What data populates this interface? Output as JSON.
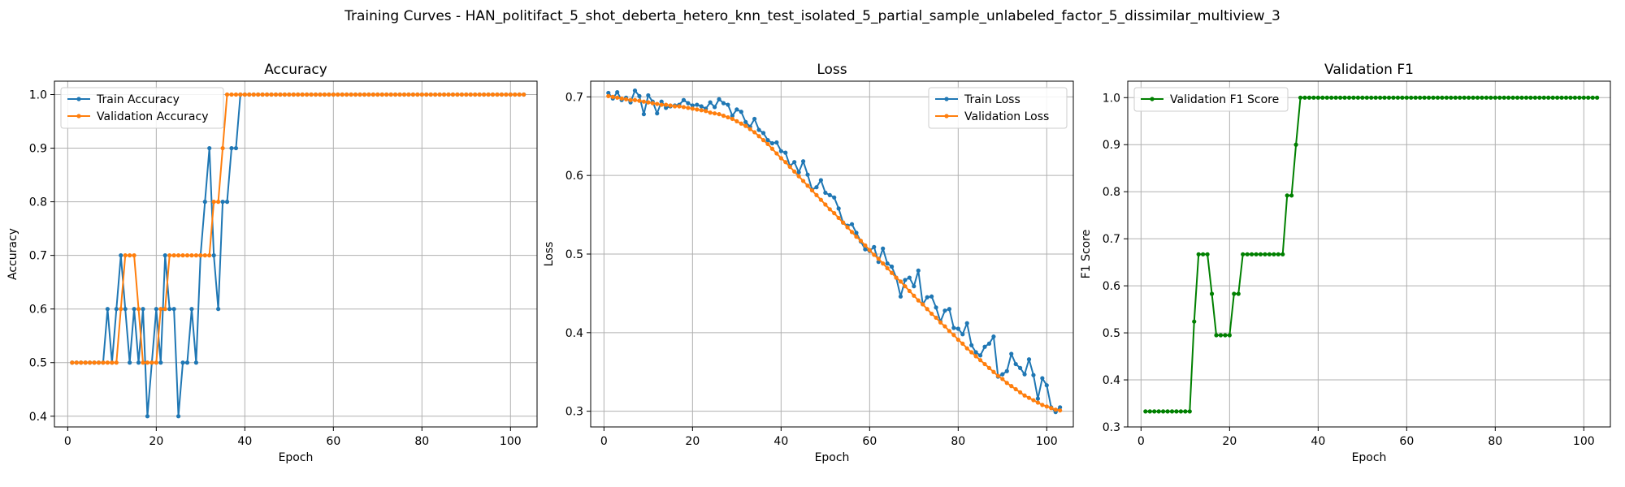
{
  "figure": {
    "title": "Training Curves - HAN_politifact_5_shot_deberta_hetero_knn_test_isolated_5_partial_sample_unlabeled_factor_5_dissimilar_multiview_3"
  },
  "colors": {
    "blue": "#1f77b4",
    "orange": "#ff7f0e",
    "green": "#008000",
    "grid": "#b0b0b0"
  },
  "chart_data": [
    {
      "type": "line",
      "title": "Accuracy",
      "xlabel": "Epoch",
      "ylabel": "Accuracy",
      "xlim": [
        -3,
        106
      ],
      "ylim": [
        0.38,
        1.025
      ],
      "xticks": [
        0,
        20,
        40,
        60,
        80,
        100
      ],
      "yticks": [
        0.4,
        0.5,
        0.6,
        0.7,
        0.8,
        0.9,
        1.0
      ],
      "grid": true,
      "legend": "top-left",
      "series": [
        {
          "name": "Train Accuracy",
          "color": "#1f77b4",
          "x_start": 1,
          "values": [
            0.5,
            0.5,
            0.5,
            0.5,
            0.5,
            0.5,
            0.5,
            0.5,
            0.6,
            0.5,
            0.6,
            0.7,
            0.6,
            0.5,
            0.6,
            0.5,
            0.6,
            0.4,
            0.5,
            0.6,
            0.5,
            0.7,
            0.6,
            0.6,
            0.4,
            0.5,
            0.5,
            0.6,
            0.5,
            0.7,
            0.8,
            0.9,
            0.7,
            0.6,
            0.8,
            0.8,
            0.9,
            0.9,
            1.0,
            1.0,
            1.0,
            1.0,
            1.0,
            1.0,
            1.0,
            1.0,
            1.0,
            1.0,
            1.0,
            1.0,
            1.0,
            1.0,
            1.0,
            1.0,
            1.0,
            1.0,
            1.0,
            1.0,
            1.0,
            1.0,
            1.0,
            1.0,
            1.0,
            1.0,
            1.0,
            1.0,
            1.0,
            1.0,
            1.0,
            1.0,
            1.0,
            1.0,
            1.0,
            1.0,
            1.0,
            1.0,
            1.0,
            1.0,
            1.0,
            1.0,
            1.0,
            1.0,
            1.0,
            1.0,
            1.0,
            1.0,
            1.0,
            1.0,
            1.0,
            1.0,
            1.0,
            1.0,
            1.0,
            1.0,
            1.0,
            1.0,
            1.0,
            1.0,
            1.0,
            1.0,
            1.0,
            1.0,
            1.0
          ]
        },
        {
          "name": "Validation Accuracy",
          "color": "#ff7f0e",
          "x_start": 1,
          "values": [
            0.5,
            0.5,
            0.5,
            0.5,
            0.5,
            0.5,
            0.5,
            0.5,
            0.5,
            0.5,
            0.5,
            0.6,
            0.7,
            0.7,
            0.7,
            0.6,
            0.5,
            0.5,
            0.5,
            0.5,
            0.6,
            0.6,
            0.7,
            0.7,
            0.7,
            0.7,
            0.7,
            0.7,
            0.7,
            0.7,
            0.7,
            0.7,
            0.8,
            0.8,
            0.9,
            1.0,
            1.0,
            1.0,
            1.0,
            1.0,
            1.0,
            1.0,
            1.0,
            1.0,
            1.0,
            1.0,
            1.0,
            1.0,
            1.0,
            1.0,
            1.0,
            1.0,
            1.0,
            1.0,
            1.0,
            1.0,
            1.0,
            1.0,
            1.0,
            1.0,
            1.0,
            1.0,
            1.0,
            1.0,
            1.0,
            1.0,
            1.0,
            1.0,
            1.0,
            1.0,
            1.0,
            1.0,
            1.0,
            1.0,
            1.0,
            1.0,
            1.0,
            1.0,
            1.0,
            1.0,
            1.0,
            1.0,
            1.0,
            1.0,
            1.0,
            1.0,
            1.0,
            1.0,
            1.0,
            1.0,
            1.0,
            1.0,
            1.0,
            1.0,
            1.0,
            1.0,
            1.0,
            1.0,
            1.0,
            1.0,
            1.0,
            1.0,
            1.0
          ]
        }
      ]
    },
    {
      "type": "line",
      "title": "Loss",
      "xlabel": "Epoch",
      "ylabel": "Loss",
      "xlim": [
        -3,
        106
      ],
      "ylim": [
        0.28,
        0.72
      ],
      "xticks": [
        0,
        20,
        40,
        60,
        80,
        100
      ],
      "yticks": [
        0.3,
        0.4,
        0.5,
        0.6,
        0.7
      ],
      "grid": true,
      "legend": "top-right",
      "series": [
        {
          "name": "Train Loss",
          "color": "#1f77b4",
          "x_start": 1,
          "values": [
            0.705,
            0.698,
            0.706,
            0.696,
            0.699,
            0.693,
            0.708,
            0.701,
            0.678,
            0.702,
            0.694,
            0.679,
            0.694,
            0.686,
            0.688,
            0.689,
            0.69,
            0.696,
            0.692,
            0.689,
            0.69,
            0.688,
            0.685,
            0.693,
            0.687,
            0.697,
            0.692,
            0.69,
            0.676,
            0.684,
            0.681,
            0.668,
            0.662,
            0.672,
            0.658,
            0.654,
            0.645,
            0.641,
            0.642,
            0.631,
            0.629,
            0.612,
            0.617,
            0.604,
            0.618,
            0.601,
            0.582,
            0.585,
            0.594,
            0.578,
            0.575,
            0.572,
            0.558,
            0.54,
            0.536,
            0.538,
            0.527,
            0.516,
            0.506,
            0.504,
            0.509,
            0.49,
            0.507,
            0.488,
            0.484,
            0.47,
            0.446,
            0.467,
            0.47,
            0.459,
            0.479,
            0.436,
            0.445,
            0.446,
            0.432,
            0.414,
            0.428,
            0.43,
            0.406,
            0.405,
            0.398,
            0.412,
            0.384,
            0.375,
            0.371,
            0.382,
            0.386,
            0.395,
            0.344,
            0.347,
            0.351,
            0.373,
            0.36,
            0.355,
            0.347,
            0.366,
            0.346,
            0.316,
            0.342,
            0.333,
            0.305,
            0.299,
            0.305
          ]
        },
        {
          "name": "Validation Loss",
          "color": "#ff7f0e",
          "x_start": 1,
          "values": [
            0.701,
            0.7,
            0.699,
            0.698,
            0.697,
            0.696,
            0.696,
            0.695,
            0.694,
            0.693,
            0.692,
            0.691,
            0.69,
            0.69,
            0.689,
            0.688,
            0.688,
            0.687,
            0.686,
            0.685,
            0.684,
            0.683,
            0.682,
            0.68,
            0.679,
            0.678,
            0.676,
            0.674,
            0.672,
            0.669,
            0.666,
            0.663,
            0.659,
            0.655,
            0.65,
            0.645,
            0.64,
            0.634,
            0.628,
            0.622,
            0.617,
            0.611,
            0.605,
            0.599,
            0.593,
            0.587,
            0.581,
            0.575,
            0.569,
            0.563,
            0.557,
            0.552,
            0.546,
            0.54,
            0.534,
            0.528,
            0.522,
            0.517,
            0.511,
            0.505,
            0.499,
            0.494,
            0.488,
            0.482,
            0.476,
            0.47,
            0.465,
            0.459,
            0.453,
            0.447,
            0.441,
            0.436,
            0.43,
            0.424,
            0.419,
            0.413,
            0.408,
            0.402,
            0.397,
            0.391,
            0.386,
            0.38,
            0.375,
            0.37,
            0.365,
            0.36,
            0.355,
            0.35,
            0.345,
            0.341,
            0.336,
            0.332,
            0.328,
            0.324,
            0.32,
            0.317,
            0.314,
            0.311,
            0.308,
            0.306,
            0.304,
            0.302,
            0.301
          ]
        }
      ]
    },
    {
      "type": "line",
      "title": "Validation F1",
      "xlabel": "Epoch",
      "ylabel": "F1 Score",
      "xlim": [
        -3,
        106
      ],
      "ylim": [
        0.3,
        1.035
      ],
      "xticks": [
        0,
        20,
        40,
        60,
        80,
        100
      ],
      "yticks": [
        0.3,
        0.4,
        0.5,
        0.6,
        0.7,
        0.8,
        0.9,
        1.0
      ],
      "grid": true,
      "legend": "top-left",
      "series": [
        {
          "name": "Validation F1 Score",
          "color": "#008000",
          "x_start": 1,
          "values": [
            0.333,
            0.333,
            0.333,
            0.333,
            0.333,
            0.333,
            0.333,
            0.333,
            0.333,
            0.333,
            0.333,
            0.524,
            0.667,
            0.667,
            0.667,
            0.583,
            0.495,
            0.495,
            0.495,
            0.495,
            0.583,
            0.583,
            0.667,
            0.667,
            0.667,
            0.667,
            0.667,
            0.667,
            0.667,
            0.667,
            0.667,
            0.667,
            0.792,
            0.792,
            0.9,
            1.0,
            1.0,
            1.0,
            1.0,
            1.0,
            1.0,
            1.0,
            1.0,
            1.0,
            1.0,
            1.0,
            1.0,
            1.0,
            1.0,
            1.0,
            1.0,
            1.0,
            1.0,
            1.0,
            1.0,
            1.0,
            1.0,
            1.0,
            1.0,
            1.0,
            1.0,
            1.0,
            1.0,
            1.0,
            1.0,
            1.0,
            1.0,
            1.0,
            1.0,
            1.0,
            1.0,
            1.0,
            1.0,
            1.0,
            1.0,
            1.0,
            1.0,
            1.0,
            1.0,
            1.0,
            1.0,
            1.0,
            1.0,
            1.0,
            1.0,
            1.0,
            1.0,
            1.0,
            1.0,
            1.0,
            1.0,
            1.0,
            1.0,
            1.0,
            1.0,
            1.0,
            1.0,
            1.0,
            1.0,
            1.0,
            1.0,
            1.0,
            1.0
          ]
        }
      ]
    }
  ]
}
